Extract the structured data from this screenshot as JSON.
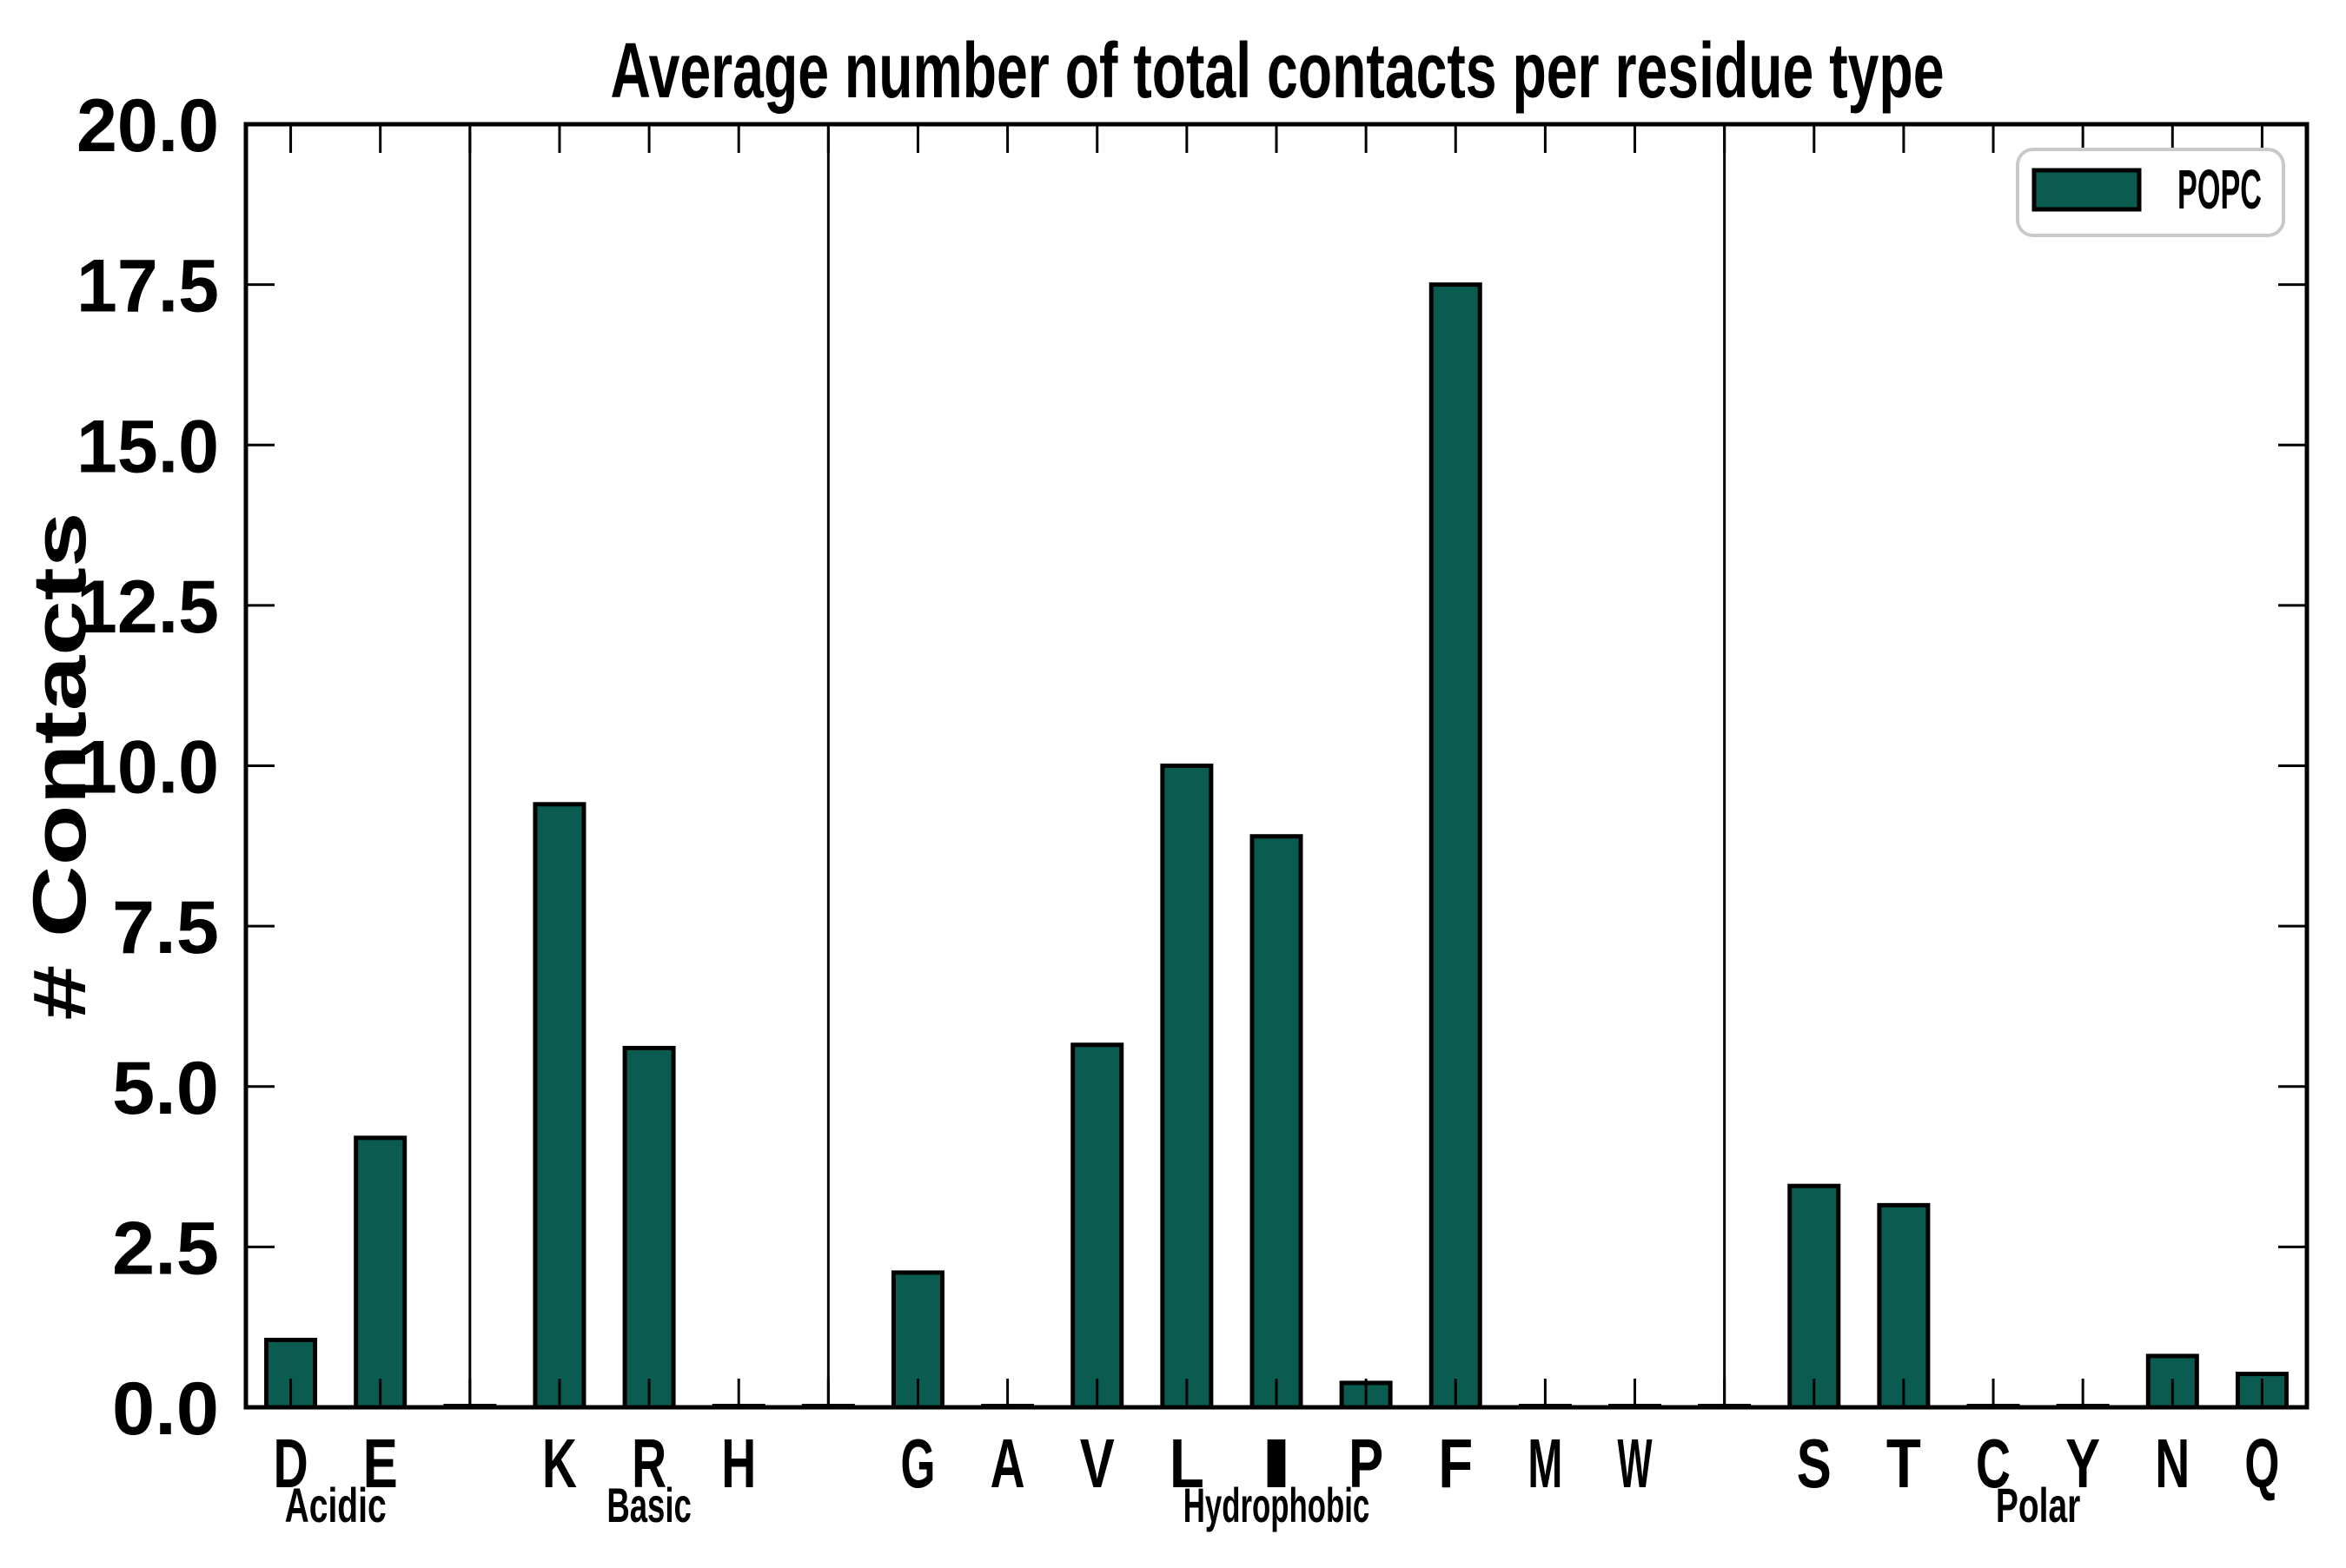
{
  "title": "Average number of total contacts per residue type",
  "y_axis": {
    "label": "# Contacts",
    "min": 0,
    "max": 20,
    "tick_values": [
      0.0,
      2.5,
      5.0,
      7.5,
      10.0,
      12.5,
      15.0,
      17.5,
      20.0
    ],
    "tick_labels": [
      "0.0",
      "2.5",
      "5.0",
      "7.5",
      "10.0",
      "12.5",
      "15.0",
      "17.5",
      "20.0"
    ]
  },
  "legend": {
    "label": "POPC",
    "position": "upper right"
  },
  "colors": {
    "bar_fill": "#0b5c50",
    "bar_edge": "#000000",
    "axis": "#000000",
    "divider": "#000000",
    "legend_border": "#c9c9c9",
    "background": "#ffffff"
  },
  "chart_data": {
    "type": "bar",
    "title": "Average number of total contacts per residue type",
    "xlabel": "",
    "ylabel": "# Contacts",
    "ylim": [
      0,
      20
    ],
    "y_ticks": [
      0.0,
      2.5,
      5.0,
      7.5,
      10.0,
      12.5,
      15.0,
      17.5,
      20.0
    ],
    "grid": false,
    "legend_entries": [
      "POPC"
    ],
    "series_name": "POPC",
    "groups": [
      {
        "label": "Acidic",
        "categories": [
          "D",
          "E"
        ],
        "values": [
          1.05,
          4.2
        ]
      },
      {
        "label": "Basic",
        "categories": [
          "K",
          "R",
          "H"
        ],
        "values": [
          9.4,
          5.6,
          0.02
        ]
      },
      {
        "label": "Hydrophobic",
        "categories": [
          "G",
          "A",
          "V",
          "L",
          "I",
          "P",
          "F",
          "M",
          "W"
        ],
        "values": [
          2.1,
          0.02,
          5.65,
          10.0,
          8.9,
          0.38,
          17.5,
          0.02,
          0.02
        ]
      },
      {
        "label": "Polar",
        "categories": [
          "S",
          "T",
          "C",
          "Y",
          "N",
          "Q"
        ],
        "values": [
          3.45,
          3.15,
          0.02,
          0.02,
          0.8,
          0.52
        ]
      }
    ],
    "group_divider_gap_bar_value": 0.02
  }
}
